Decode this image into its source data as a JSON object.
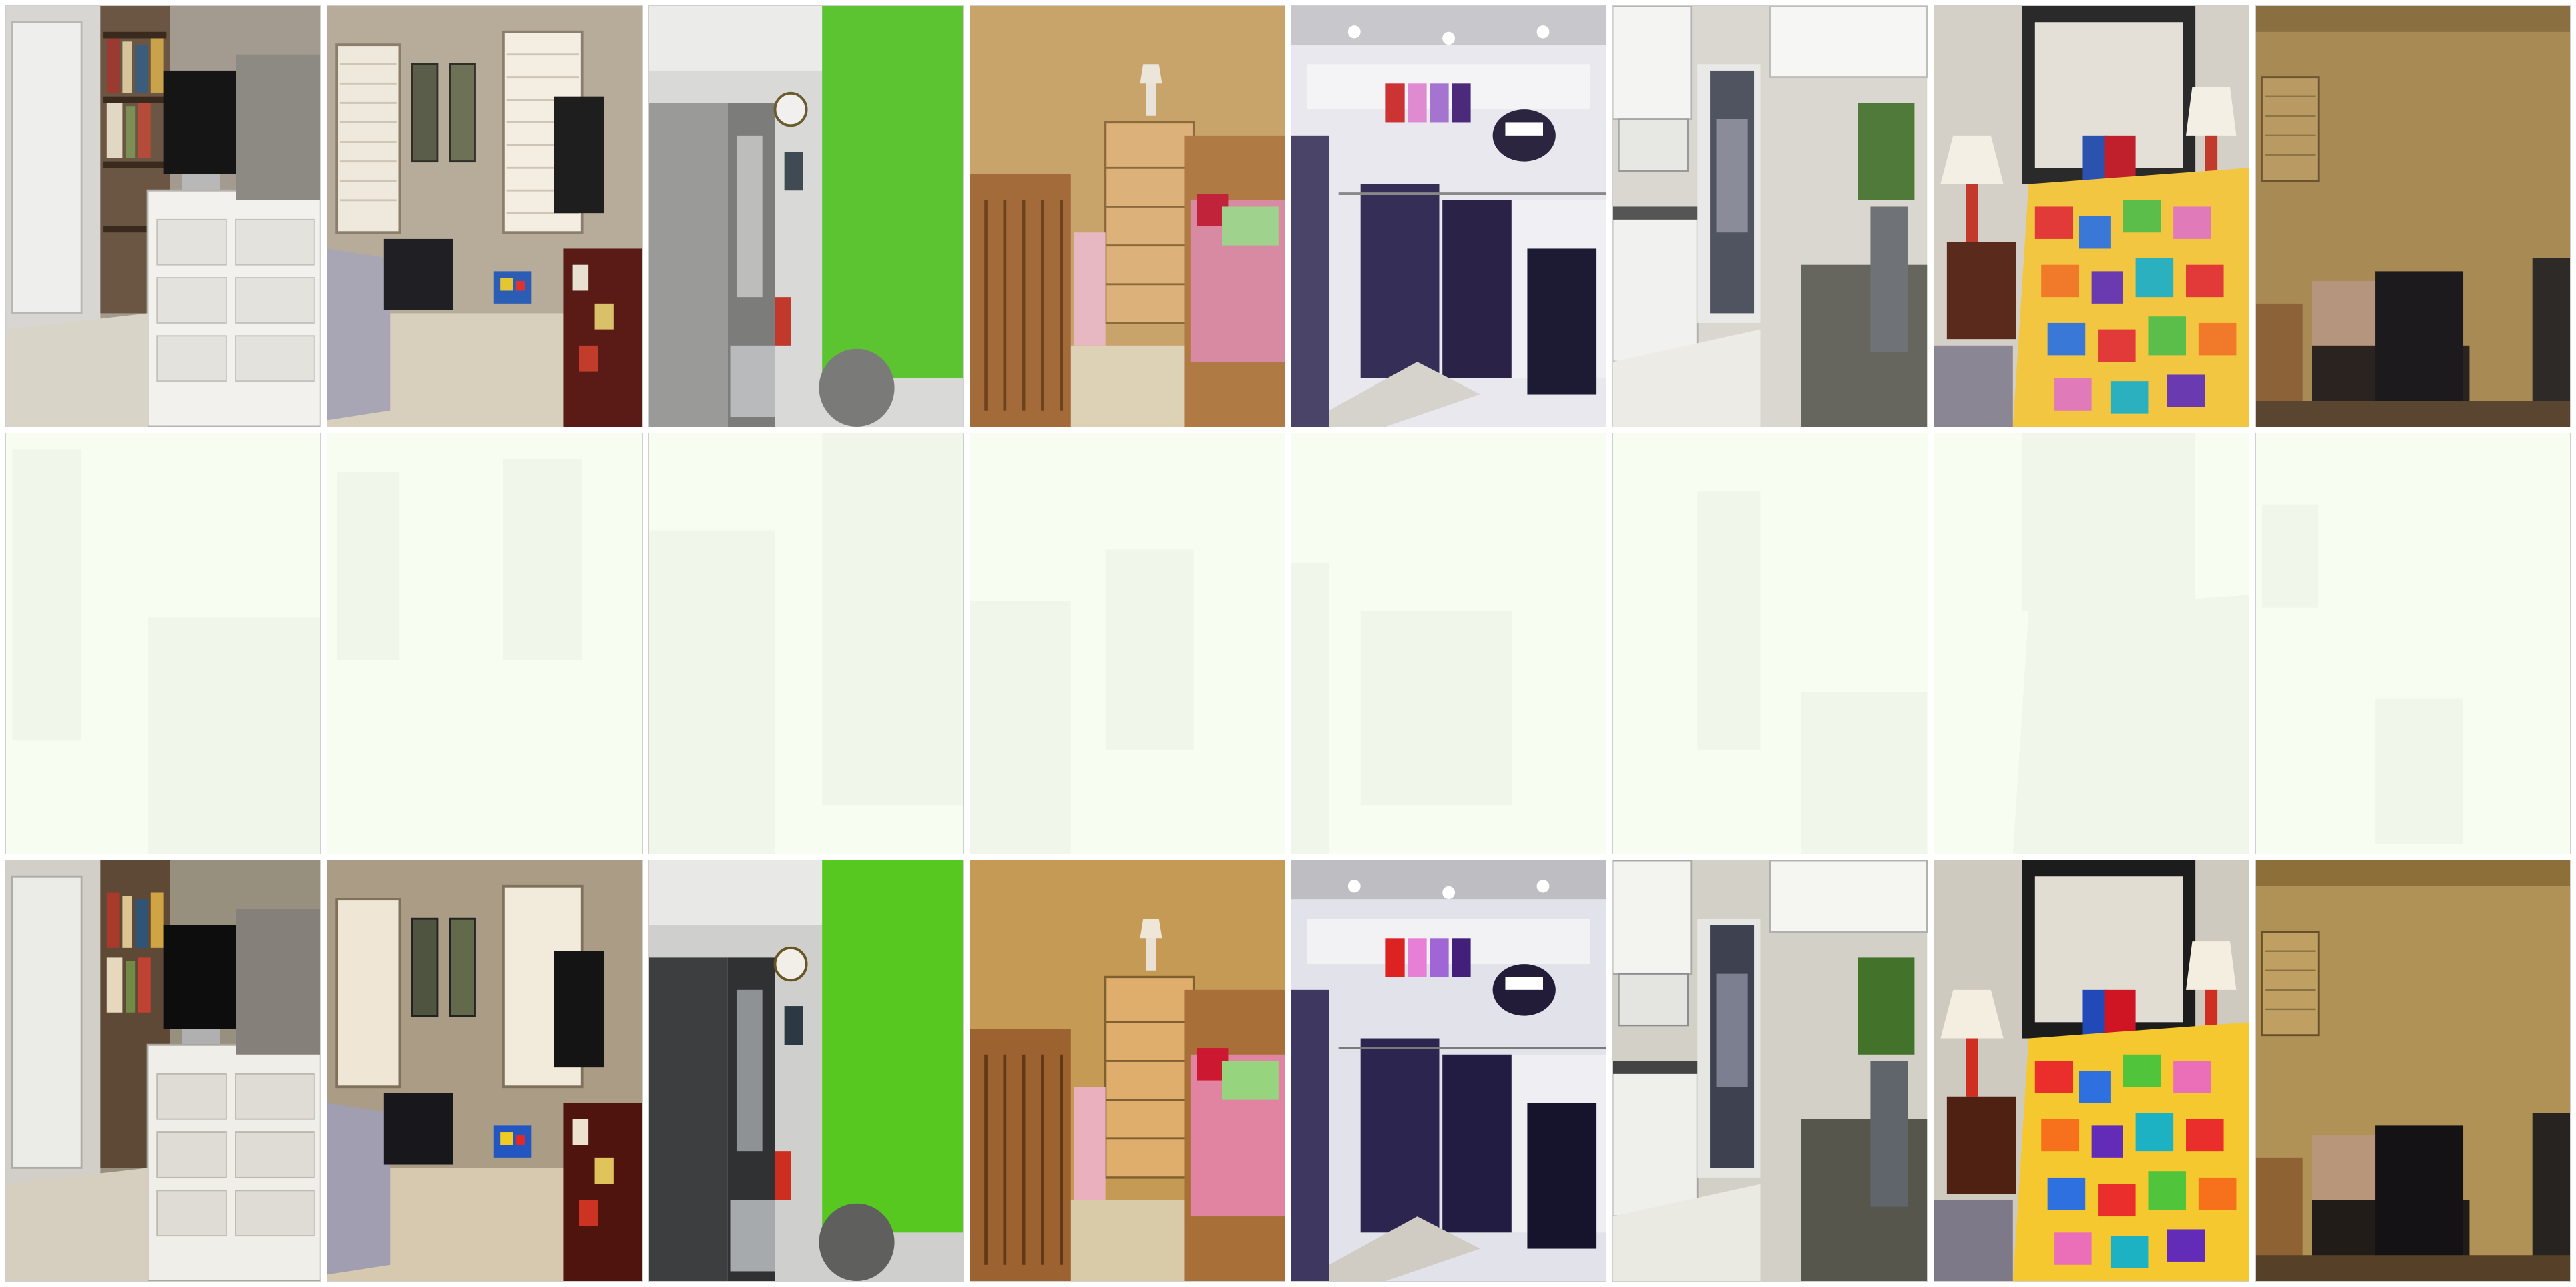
{
  "grid": {
    "rows": 3,
    "columns": 8,
    "row_roles": [
      "input",
      "washed-out",
      "output"
    ],
    "scenes": [
      "bedroom-dresser-monitor",
      "bedroom-windows-pet-crate",
      "office-door-green-wall",
      "nursery-crib-dresser",
      "retail-store-apparel",
      "kitchen-doorway-counter",
      "bedroom-patchwork-quilt",
      "dim-bedroom-corner"
    ]
  },
  "colors": {
    "background": "#ffffff",
    "washed_tile": "#f8fdf2",
    "tile_border": "#cfcfcf"
  }
}
